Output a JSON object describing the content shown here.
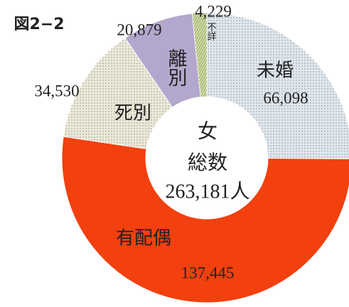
{
  "chart_data": {
    "type": "donut",
    "title": "図2−2",
    "categories": [
      "未婚",
      "有配偶",
      "死別",
      "離別",
      "不詳"
    ],
    "values": [
      66098,
      137445,
      34530,
      20879,
      4229
    ],
    "value_labels": [
      "66,098",
      "137,445",
      "34,530",
      "20,879",
      "4,229"
    ],
    "colors": [
      "#dfe7ef",
      "#f2400f",
      "#ede9d8",
      "#b4a7cd",
      "#cfdca8"
    ],
    "center_labels": [
      "女",
      "総数",
      "263,181人"
    ]
  }
}
